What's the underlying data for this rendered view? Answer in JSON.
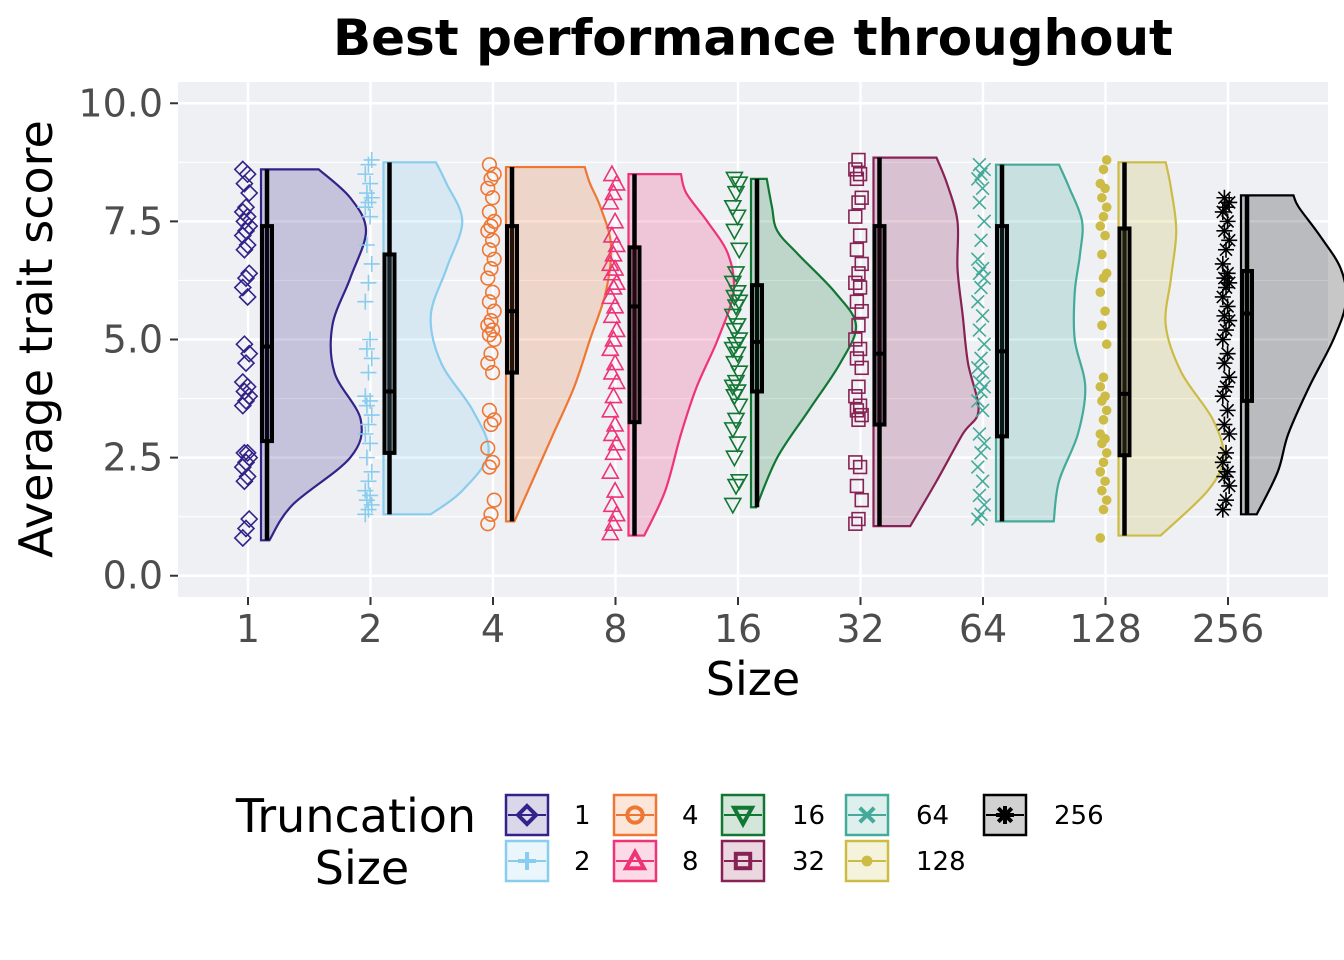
{
  "chart_data": {
    "type": "raincloud",
    "title": "Best performance throughout",
    "xlabel": "Size",
    "ylabel": "Average trait score",
    "ylim": [
      -0.45,
      10.45
    ],
    "yticks": [
      0,
      2.5,
      5,
      7.5,
      10
    ],
    "ytick_labels": [
      "0.0",
      "2.5",
      "5.0",
      "7.5",
      "10.0"
    ],
    "categories": [
      "1",
      "2",
      "4",
      "8",
      "16",
      "32",
      "64",
      "128",
      "256"
    ],
    "grid": true,
    "legend": {
      "title_lines": [
        "Truncation",
        "Size"
      ],
      "position": "bottom"
    },
    "series": [
      {
        "name": "1",
        "color": "#332288",
        "shape": "diamond",
        "min": 0.75,
        "q1": 2.85,
        "median": 4.85,
        "q3": 7.4,
        "max": 8.6,
        "density": [
          [
            0.75,
            0.08
          ],
          [
            1.5,
            0.3
          ],
          [
            2.5,
            0.85
          ],
          [
            3.3,
            0.95
          ],
          [
            4.3,
            0.7
          ],
          [
            5.3,
            0.68
          ],
          [
            6.3,
            0.85
          ],
          [
            7.3,
            1.0
          ],
          [
            8.0,
            0.85
          ],
          [
            8.6,
            0.55
          ]
        ],
        "points": [
          0.8,
          1.0,
          1.2,
          2.0,
          2.1,
          2.3,
          2.4,
          2.5,
          2.6,
          2.6,
          3.6,
          3.7,
          3.8,
          3.9,
          4.0,
          4.1,
          4.5,
          4.7,
          4.9,
          5.9,
          6.1,
          6.3,
          6.4,
          6.9,
          7.0,
          7.2,
          7.3,
          7.4,
          7.5,
          7.6,
          7.7,
          7.8,
          8.1,
          8.3,
          8.5,
          8.6
        ]
      },
      {
        "name": "2",
        "color": "#88CCEE",
        "shape": "plus",
        "min": 1.3,
        "q1": 2.6,
        "median": 3.9,
        "q3": 6.8,
        "max": 8.75,
        "density": [
          [
            1.3,
            0.45
          ],
          [
            1.8,
            0.75
          ],
          [
            2.6,
            1.0
          ],
          [
            3.5,
            0.85
          ],
          [
            4.5,
            0.55
          ],
          [
            5.5,
            0.45
          ],
          [
            6.5,
            0.6
          ],
          [
            7.5,
            0.75
          ],
          [
            8.3,
            0.6
          ],
          [
            8.75,
            0.5
          ]
        ],
        "points": [
          1.3,
          1.4,
          1.5,
          1.6,
          1.7,
          1.8,
          2.0,
          2.2,
          2.5,
          2.8,
          3.0,
          3.2,
          3.4,
          3.6,
          3.7,
          3.8,
          4.3,
          4.6,
          4.8,
          5.0,
          5.8,
          6.2,
          6.6,
          7.0,
          7.6,
          7.8,
          7.9,
          8.0,
          8.1,
          8.3,
          8.5,
          8.7,
          8.8
        ]
      },
      {
        "name": "4",
        "color": "#EE7733",
        "shape": "circle",
        "min": 1.15,
        "q1": 4.3,
        "median": 5.6,
        "q3": 7.4,
        "max": 8.65,
        "density": [
          [
            1.15,
            0.08
          ],
          [
            2.0,
            0.25
          ],
          [
            3.0,
            0.45
          ],
          [
            4.0,
            0.65
          ],
          [
            5.0,
            0.8
          ],
          [
            6.0,
            0.95
          ],
          [
            7.0,
            1.0
          ],
          [
            7.8,
            0.9
          ],
          [
            8.3,
            0.8
          ],
          [
            8.65,
            0.75
          ]
        ],
        "points": [
          1.1,
          1.3,
          1.6,
          2.3,
          2.4,
          2.7,
          3.2,
          3.3,
          3.5,
          4.3,
          4.5,
          4.7,
          5.0,
          5.1,
          5.2,
          5.3,
          5.4,
          5.6,
          5.8,
          6.0,
          6.3,
          6.5,
          6.7,
          6.9,
          7.1,
          7.3,
          7.4,
          7.5,
          7.7,
          8.0,
          8.2,
          8.4,
          8.5,
          8.7
        ]
      },
      {
        "name": "8",
        "color": "#EE3377",
        "shape": "triangle",
        "min": 0.85,
        "q1": 3.25,
        "median": 5.7,
        "q3": 6.95,
        "max": 8.5,
        "density": [
          [
            0.85,
            0.15
          ],
          [
            1.8,
            0.35
          ],
          [
            3.0,
            0.5
          ],
          [
            4.0,
            0.65
          ],
          [
            5.0,
            0.85
          ],
          [
            6.0,
            1.0
          ],
          [
            6.8,
            0.95
          ],
          [
            7.5,
            0.75
          ],
          [
            8.1,
            0.55
          ],
          [
            8.5,
            0.5
          ]
        ],
        "points": [
          0.9,
          1.1,
          1.3,
          1.5,
          1.8,
          2.2,
          2.6,
          2.8,
          3.0,
          3.2,
          3.5,
          3.8,
          4.1,
          4.3,
          4.5,
          4.8,
          5.0,
          5.2,
          5.5,
          5.7,
          5.9,
          6.1,
          6.2,
          6.4,
          6.5,
          6.6,
          6.8,
          7.0,
          7.2,
          7.5,
          7.9,
          8.1,
          8.3,
          8.5
        ]
      },
      {
        "name": "16",
        "color": "#117733",
        "shape": "triangle-down",
        "min": 1.45,
        "q1": 3.9,
        "median": 4.95,
        "q3": 6.15,
        "max": 8.4,
        "density": [
          [
            1.45,
            0.05
          ],
          [
            2.5,
            0.25
          ],
          [
            3.5,
            0.55
          ],
          [
            4.5,
            0.85
          ],
          [
            5.3,
            1.0
          ],
          [
            6.0,
            0.8
          ],
          [
            6.8,
            0.45
          ],
          [
            7.3,
            0.25
          ],
          [
            7.8,
            0.2
          ],
          [
            8.4,
            0.15
          ]
        ],
        "points": [
          1.5,
          1.9,
          2.0,
          2.5,
          2.8,
          3.1,
          3.3,
          3.6,
          3.8,
          3.9,
          4.0,
          4.1,
          4.3,
          4.5,
          4.7,
          4.8,
          4.9,
          5.0,
          5.2,
          5.3,
          5.5,
          5.7,
          5.8,
          5.9,
          6.0,
          6.2,
          6.4,
          6.9,
          7.3,
          7.6,
          7.8,
          8.1,
          8.3,
          8.4
        ]
      },
      {
        "name": "32",
        "color": "#882255",
        "shape": "square",
        "min": 1.05,
        "q1": 3.2,
        "median": 4.7,
        "q3": 7.4,
        "max": 8.85,
        "density": [
          [
            1.05,
            0.35
          ],
          [
            2.0,
            0.6
          ],
          [
            3.0,
            0.85
          ],
          [
            3.5,
            1.0
          ],
          [
            4.5,
            0.9
          ],
          [
            5.5,
            0.85
          ],
          [
            6.5,
            0.8
          ],
          [
            7.5,
            0.8
          ],
          [
            8.3,
            0.7
          ],
          [
            8.85,
            0.6
          ]
        ],
        "points": [
          1.1,
          1.2,
          1.6,
          1.9,
          2.3,
          2.4,
          3.3,
          3.4,
          3.5,
          3.6,
          3.8,
          4.0,
          4.4,
          4.6,
          4.8,
          5.0,
          5.3,
          5.6,
          5.8,
          6.1,
          6.2,
          6.4,
          6.6,
          6.9,
          7.2,
          7.6,
          7.9,
          8.0,
          8.4,
          8.5,
          8.6,
          8.8
        ]
      },
      {
        "name": "64",
        "color": "#44AA99",
        "shape": "x",
        "min": 1.15,
        "q1": 2.95,
        "median": 4.75,
        "q3": 7.4,
        "max": 8.7,
        "density": [
          [
            1.15,
            0.55
          ],
          [
            2.0,
            0.6
          ],
          [
            3.0,
            0.78
          ],
          [
            4.0,
            0.85
          ],
          [
            5.0,
            0.75
          ],
          [
            6.0,
            0.75
          ],
          [
            6.8,
            0.8
          ],
          [
            7.5,
            0.82
          ],
          [
            8.2,
            0.7
          ],
          [
            8.7,
            0.6
          ]
        ],
        "points": [
          1.2,
          1.3,
          1.5,
          1.7,
          2.0,
          2.3,
          2.6,
          2.8,
          3.0,
          3.5,
          3.7,
          3.9,
          4.0,
          4.1,
          4.3,
          4.4,
          4.6,
          4.9,
          5.2,
          5.5,
          5.8,
          6.1,
          6.3,
          6.4,
          6.5,
          6.7,
          7.1,
          7.5,
          7.9,
          8.2,
          8.4,
          8.5,
          8.6,
          8.7
        ]
      },
      {
        "name": "128",
        "color": "#CCBB44",
        "shape": "dot",
        "min": 0.85,
        "q1": 2.55,
        "median": 3.85,
        "q3": 7.35,
        "max": 8.75,
        "density": [
          [
            0.85,
            0.4
          ],
          [
            1.8,
            0.85
          ],
          [
            2.5,
            1.0
          ],
          [
            3.3,
            0.9
          ],
          [
            4.3,
            0.6
          ],
          [
            5.3,
            0.45
          ],
          [
            6.3,
            0.5
          ],
          [
            7.3,
            0.55
          ],
          [
            8.2,
            0.5
          ],
          [
            8.75,
            0.45
          ]
        ],
        "points": [
          0.8,
          1.4,
          1.6,
          1.8,
          2.0,
          2.2,
          2.4,
          2.6,
          2.8,
          2.9,
          3.0,
          3.3,
          3.5,
          3.7,
          3.8,
          4.0,
          4.2,
          4.9,
          5.3,
          5.6,
          6.0,
          6.3,
          6.4,
          6.8,
          7.2,
          7.4,
          7.6,
          7.8,
          8.0,
          8.2,
          8.3,
          8.6,
          8.8
        ]
      },
      {
        "name": "256",
        "color": "#000000",
        "shape": "asterisk",
        "min": 1.3,
        "q1": 3.7,
        "median": 5.55,
        "q3": 6.45,
        "max": 8.05,
        "density": [
          [
            1.3,
            0.15
          ],
          [
            2.2,
            0.35
          ],
          [
            3.0,
            0.45
          ],
          [
            4.0,
            0.65
          ],
          [
            5.0,
            0.88
          ],
          [
            5.8,
            1.0
          ],
          [
            6.5,
            0.95
          ],
          [
            7.2,
            0.75
          ],
          [
            7.8,
            0.55
          ],
          [
            8.05,
            0.5
          ]
        ],
        "points": [
          1.4,
          1.6,
          1.9,
          2.1,
          2.2,
          2.4,
          2.6,
          3.0,
          3.2,
          3.5,
          3.8,
          4.0,
          4.2,
          4.5,
          4.7,
          5.0,
          5.2,
          5.4,
          5.5,
          5.7,
          5.9,
          6.1,
          6.2,
          6.3,
          6.4,
          6.6,
          6.9,
          7.1,
          7.3,
          7.5,
          7.7,
          7.8,
          7.9,
          8.0
        ]
      }
    ]
  }
}
